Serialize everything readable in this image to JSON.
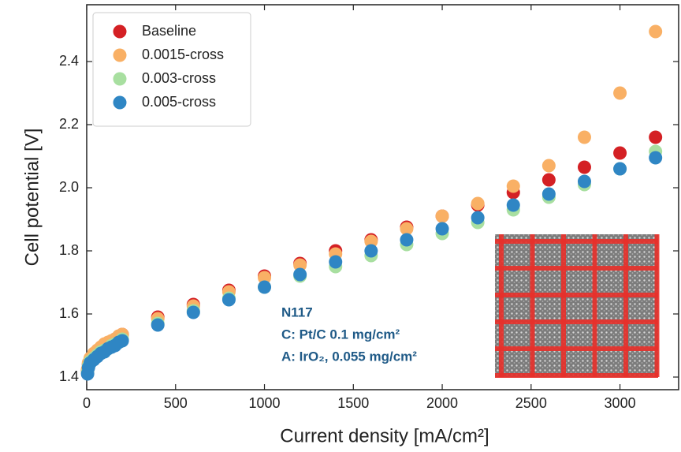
{
  "chart_data": {
    "type": "scatter",
    "xlabel": "Current density [mA/cm²]",
    "ylabel": "Cell potential [V]",
    "x": [
      5,
      10,
      20,
      40,
      60,
      80,
      100,
      120,
      140,
      160,
      180,
      200,
      400,
      600,
      800,
      1000,
      1200,
      1400,
      1600,
      1800,
      2000,
      2200,
      2400,
      2600,
      2800,
      3000,
      3200
    ],
    "series": [
      {
        "name": "Baseline",
        "color": "#d42024",
        "values": [
          1.42,
          1.44,
          1.455,
          1.47,
          1.48,
          1.49,
          1.5,
          1.505,
          1.51,
          1.52,
          1.525,
          1.535,
          1.59,
          1.63,
          1.675,
          1.72,
          1.76,
          1.8,
          1.835,
          1.875,
          1.91,
          1.945,
          1.985,
          2.025,
          2.065,
          2.11,
          2.16
        ]
      },
      {
        "name": "0.0015-cross",
        "color": "#f9b065",
        "values": [
          1.425,
          1.445,
          1.46,
          1.475,
          1.485,
          1.495,
          1.505,
          1.51,
          1.515,
          1.52,
          1.53,
          1.535,
          1.585,
          1.625,
          1.67,
          1.715,
          1.755,
          1.79,
          1.83,
          1.87,
          1.91,
          1.95,
          2.005,
          2.07,
          2.16,
          2.3,
          2.495
        ]
      },
      {
        "name": "0.003-cross",
        "color": "#a8dfa0",
        "values": [
          1.415,
          1.435,
          1.45,
          1.46,
          1.47,
          1.48,
          1.485,
          1.49,
          1.5,
          1.505,
          1.51,
          1.52,
          1.57,
          1.61,
          1.65,
          1.685,
          1.72,
          1.75,
          1.785,
          1.82,
          1.855,
          1.89,
          1.93,
          1.97,
          2.01,
          2.06,
          2.115
        ]
      },
      {
        "name": "0.005-cross",
        "color": "#2f86c4",
        "values": [
          1.41,
          1.43,
          1.445,
          1.455,
          1.465,
          1.475,
          1.48,
          1.49,
          1.495,
          1.5,
          1.51,
          1.515,
          1.565,
          1.605,
          1.645,
          1.685,
          1.725,
          1.765,
          1.8,
          1.835,
          1.87,
          1.905,
          1.945,
          1.98,
          2.02,
          2.06,
          2.095
        ]
      }
    ],
    "xlim": [
      0,
      3330
    ],
    "ylim": [
      1.36,
      2.58
    ],
    "xticks": [
      0,
      500,
      1000,
      1500,
      2000,
      2500,
      3000
    ],
    "yticks": [
      1.4,
      1.6,
      1.8,
      {
        "value": 2,
        "label": "2.0"
      },
      2.2,
      2.4
    ],
    "legend": "upper left",
    "annotations": [
      "N117",
      "C: Pt/C 0.1 mg/cm²",
      "A: IrO₂, 0.055 mg/cm²"
    ]
  }
}
